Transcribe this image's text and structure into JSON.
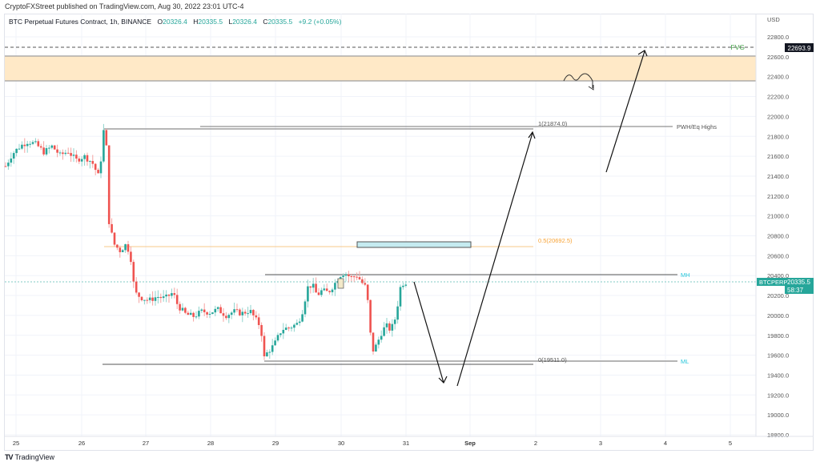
{
  "publisher_line": "CryptoFXStreet published on TradingView.com, Aug 30, 2022 23:01 UTC-4",
  "legend": {
    "symbol": "BTC Perpetual Futures Contract, 1h, BINANCE",
    "o_label": "O",
    "o": "20326.4",
    "h_label": "H",
    "h": "20335.5",
    "l_label": "L",
    "l": "20326.4",
    "c_label": "C",
    "c": "20335.5",
    "change": "+9.2 (+0.05%)"
  },
  "price_axis": {
    "currency": "USD",
    "ticks": [
      "22800.0",
      "22600.0",
      "22400.0",
      "22200.0",
      "22000.0",
      "21800.0",
      "21600.0",
      "21400.0",
      "21200.0",
      "21000.0",
      "20800.0",
      "20600.0",
      "20400.0",
      "20200.0",
      "20000.0",
      "19800.0",
      "19600.0",
      "19400.0",
      "19200.0",
      "19000.0",
      "18800.0"
    ],
    "fvg_price_label": "22693.9",
    "last_price_symbol": "BTCPERP",
    "last_price": "20335.5",
    "countdown": "58:37"
  },
  "time_axis": {
    "ticks": [
      "25",
      "26",
      "27",
      "28",
      "29",
      "30",
      "31",
      "Sep",
      "2",
      "3",
      "4",
      "5"
    ]
  },
  "annotations": {
    "fvg_label": "FVG",
    "fib_1": "1(21874.0)",
    "fib_05": "0.5(20692.5)",
    "fib_0": "0(19511.0)",
    "pwh_label": "PWH/Eq Highs",
    "mh_label": "MH",
    "ml_label": "ML"
  },
  "colors": {
    "up": "#26a69a",
    "down": "#ef5350",
    "fvg_zone": "#ffe9c7",
    "fib_05": "#f7a234",
    "level_label": "#26c6da",
    "fvg_text": "#43a047",
    "last_price_bg": "#26a69a"
  },
  "watermark": "TradingView",
  "chart_data": {
    "type": "candlestick",
    "title": "BTC Perpetual Futures Contract, 1h, BINANCE",
    "xlabel": "",
    "ylabel": "USD",
    "ylim": [
      18800,
      22800
    ],
    "grid": true,
    "x_ticks": [
      "25",
      "26",
      "27",
      "28",
      "29",
      "30",
      "31",
      "Sep",
      "2",
      "3",
      "4",
      "5"
    ],
    "last_ohlc": {
      "open": 20326.4,
      "high": 20335.5,
      "low": 20326.4,
      "close": 20335.5,
      "change": 9.2,
      "change_pct": 0.05
    },
    "approx_price_path": [
      {
        "date": "Aug 25",
        "price": 21500
      },
      {
        "date": "Aug 25 12h",
        "price": 21750
      },
      {
        "date": "Aug 26 00h",
        "price": 21580
      },
      {
        "date": "Aug 26 08h",
        "price": 21874
      },
      {
        "date": "Aug 26 10h",
        "price": 20750
      },
      {
        "date": "Aug 26 20h",
        "price": 20200
      },
      {
        "date": "Aug 27 12h",
        "price": 20150
      },
      {
        "date": "Aug 28 00h",
        "price": 19950
      },
      {
        "date": "Aug 28 18h",
        "price": 19550
      },
      {
        "date": "Aug 29 12h",
        "price": 20250
      },
      {
        "date": "Aug 30 00h",
        "price": 20420
      },
      {
        "date": "Aug 30 10h",
        "price": 20350
      },
      {
        "date": "Aug 30 12h",
        "price": 19600
      },
      {
        "date": "Aug 30 22h",
        "price": 20335.5
      }
    ],
    "levels": [
      {
        "name": "FVG",
        "price": 22693.9,
        "style": "dashed"
      },
      {
        "name": "FVG zone",
        "from": 22360,
        "to": 22600,
        "type": "zone"
      },
      {
        "name": "PWH/Eq Highs (fib 1)",
        "price": 21874.0
      },
      {
        "name": "fib 0.5",
        "price": 20692.5
      },
      {
        "name": "MH",
        "price": 20420
      },
      {
        "name": "ML / fib 0",
        "price": 19511.0
      }
    ],
    "projection": [
      {
        "date": "Aug 31",
        "price": 20400
      },
      {
        "date": "Aug 31 20h",
        "price": 19300
      },
      {
        "date": "Sep 2",
        "price": 21874
      },
      {
        "date": "Sep 3",
        "price": 21500
      },
      {
        "date": "Sep 3 22h",
        "price": 22693.9
      }
    ]
  }
}
